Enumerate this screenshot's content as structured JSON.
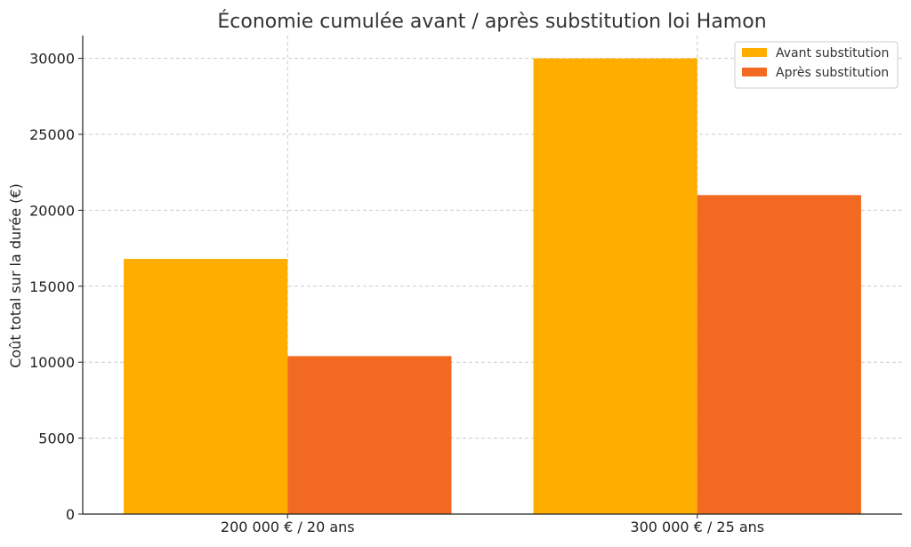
{
  "chart_data": {
    "type": "bar",
    "title": "Économie cumulée avant / après substitution loi Hamon",
    "xlabel": "",
    "ylabel": "Coût total sur la durée (€)",
    "categories": [
      "200 000 € / 20 ans",
      "300 000 € / 25 ans"
    ],
    "series": [
      {
        "name": "Avant substitution",
        "color": "#FFAE00",
        "values": [
          16800,
          30000
        ]
      },
      {
        "name": "Après substitution",
        "color": "#F26A21",
        "values": [
          10400,
          21000
        ]
      }
    ],
    "ylim": [
      0,
      31500
    ],
    "yticks": [
      "0",
      "5000",
      "10000",
      "15000",
      "20000",
      "25000",
      "30000"
    ],
    "ytick_values": [
      0,
      5000,
      10000,
      15000,
      20000,
      25000,
      30000
    ],
    "grid": true,
    "legend_position": "top-right"
  }
}
